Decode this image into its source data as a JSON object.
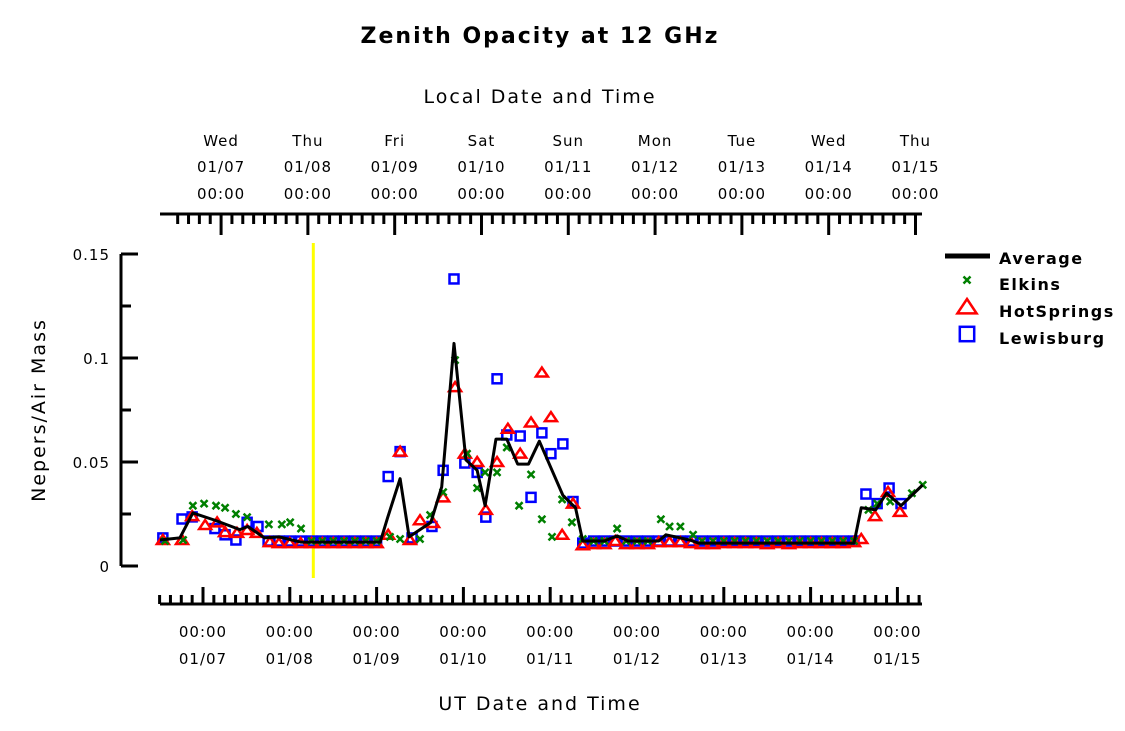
{
  "chart_data": {
    "type": "scatter",
    "title": "Zenith Opacity at 12 GHz",
    "xlabel_top": "Local Date and Time",
    "xlabel": "UT Date and Time",
    "ylabel": "Nepers/Air Mass",
    "x_units": "hours since 01/07 00:00 UT",
    "xlim": [
      -12,
      199
    ],
    "ylim": [
      0,
      0.15
    ],
    "yticks": [
      0,
      0.05,
      0.1,
      0.15
    ],
    "ytick_labels": [
      "0",
      "0.05",
      "0.1",
      "0.15"
    ],
    "local_offset_hours": -5,
    "top_ticks": [
      {
        "day": "Wed",
        "date": "01/07",
        "time": "00:00"
      },
      {
        "day": "Thu",
        "date": "01/08",
        "time": "00:00"
      },
      {
        "day": "Fri",
        "date": "01/09",
        "time": "00:00"
      },
      {
        "day": "Sat",
        "date": "01/10",
        "time": "00:00"
      },
      {
        "day": "Sun",
        "date": "01/11",
        "time": "00:00"
      },
      {
        "day": "Mon",
        "date": "01/12",
        "time": "00:00"
      },
      {
        "day": "Tue",
        "date": "01/13",
        "time": "00:00"
      },
      {
        "day": "Wed",
        "date": "01/14",
        "time": "00:00"
      },
      {
        "day": "Thu",
        "date": "01/15",
        "time": "00:00"
      }
    ],
    "bottom_ticks": [
      {
        "time": "00:00",
        "date": "01/07"
      },
      {
        "time": "00:00",
        "date": "01/08"
      },
      {
        "time": "00:00",
        "date": "01/09"
      },
      {
        "time": "00:00",
        "date": "01/10"
      },
      {
        "time": "00:00",
        "date": "01/11"
      },
      {
        "time": "00:00",
        "date": "01/12"
      },
      {
        "time": "00:00",
        "date": "01/13"
      },
      {
        "time": "00:00",
        "date": "01/14"
      },
      {
        "time": "00:00",
        "date": "01/15"
      }
    ],
    "current_time_marker": {
      "x": 30.5,
      "color": "#ffff00"
    },
    "legend_position": "top-right",
    "series": [
      {
        "name": "Average",
        "style": "line",
        "color": "#000000",
        "points": [
          [
            -11.9,
            0.0125
          ],
          [
            -6.4,
            0.0135
          ],
          [
            -2.8,
            0.0255
          ],
          [
            3.3,
            0.022
          ],
          [
            10.2,
            0.0175
          ],
          [
            12.4,
            0.019
          ],
          [
            17,
            0.0135
          ],
          [
            21,
            0.014
          ],
          [
            27,
            0.0115
          ],
          [
            49,
            0.0115
          ],
          [
            51,
            0.023
          ],
          [
            54.5,
            0.042
          ],
          [
            57,
            0.014
          ],
          [
            63,
            0.021
          ],
          [
            66,
            0.038
          ],
          [
            69.4,
            0.107
          ],
          [
            72.7,
            0.051
          ],
          [
            75.8,
            0.046
          ],
          [
            78,
            0.029
          ],
          [
            81,
            0.061
          ],
          [
            84,
            0.061
          ],
          [
            87,
            0.049
          ],
          [
            90,
            0.049
          ],
          [
            93,
            0.06
          ],
          [
            96.5,
            0.046
          ],
          [
            99.5,
            0.034
          ],
          [
            103,
            0.028
          ],
          [
            105,
            0.012
          ],
          [
            111,
            0.012
          ],
          [
            114.5,
            0.0145
          ],
          [
            117.5,
            0.012
          ],
          [
            126,
            0.012
          ],
          [
            128,
            0.015
          ],
          [
            134.6,
            0.0125
          ],
          [
            137,
            0.011
          ],
          [
            180,
            0.011
          ],
          [
            182,
            0.028
          ],
          [
            186,
            0.027
          ],
          [
            189,
            0.035
          ],
          [
            193,
            0.029
          ],
          [
            199,
            0.039
          ]
        ]
      },
      {
        "name": "Elkins",
        "style": "x",
        "color": "#008000",
        "points": [
          [
            -10.5,
            0.012
          ],
          [
            -5.5,
            0.0125
          ],
          [
            -2.8,
            0.029
          ],
          [
            0.3,
            0.03
          ],
          [
            3.6,
            0.029
          ],
          [
            6.1,
            0.028
          ],
          [
            9.1,
            0.025
          ],
          [
            12.2,
            0.0235
          ],
          [
            18.2,
            0.02
          ],
          [
            21.8,
            0.02
          ],
          [
            24.1,
            0.021
          ],
          [
            27.1,
            0.018
          ],
          [
            30,
            0.012
          ],
          [
            33,
            0.012
          ],
          [
            36,
            0.012
          ],
          [
            39,
            0.012
          ],
          [
            42,
            0.012
          ],
          [
            45,
            0.012
          ],
          [
            48,
            0.012
          ],
          [
            51.7,
            0.014
          ],
          [
            54.5,
            0.013
          ],
          [
            60,
            0.013
          ],
          [
            62.8,
            0.0245
          ],
          [
            66.4,
            0.0355
          ],
          [
            69.7,
            0.099
          ],
          [
            73,
            0.054
          ],
          [
            75.8,
            0.0375
          ],
          [
            78,
            0.045
          ],
          [
            81.3,
            0.045
          ],
          [
            84,
            0.057
          ],
          [
            87.4,
            0.029
          ],
          [
            90.7,
            0.044
          ],
          [
            93.7,
            0.0225
          ],
          [
            96.5,
            0.014
          ],
          [
            99.3,
            0.032
          ],
          [
            102,
            0.021
          ],
          [
            105,
            0.013
          ],
          [
            108,
            0.012
          ],
          [
            111,
            0.012
          ],
          [
            114.5,
            0.018
          ],
          [
            117,
            0.012
          ],
          [
            120,
            0.012
          ],
          [
            123,
            0.012
          ],
          [
            126.6,
            0.0225
          ],
          [
            129,
            0.019
          ],
          [
            132,
            0.019
          ],
          [
            135.5,
            0.015
          ],
          [
            138,
            0.012
          ],
          [
            141,
            0.012
          ],
          [
            144,
            0.012
          ],
          [
            147,
            0.012
          ],
          [
            150,
            0.012
          ],
          [
            153,
            0.012
          ],
          [
            156,
            0.012
          ],
          [
            159,
            0.012
          ],
          [
            162,
            0.012
          ],
          [
            165,
            0.012
          ],
          [
            168,
            0.012
          ],
          [
            171,
            0.012
          ],
          [
            174,
            0.012
          ],
          [
            177,
            0.012
          ],
          [
            180,
            0.012
          ],
          [
            184,
            0.027
          ],
          [
            186.4,
            0.03
          ],
          [
            190,
            0.031
          ],
          [
            196,
            0.035
          ],
          [
            199,
            0.039
          ]
        ]
      },
      {
        "name": "HotSprings",
        "style": "triangle",
        "color": "#ff0000",
        "points": [
          [
            -11.1,
            0.0125
          ],
          [
            -5.8,
            0.0125
          ],
          [
            -3,
            0.024
          ],
          [
            0.6,
            0.0197
          ],
          [
            3.9,
            0.021
          ],
          [
            6.1,
            0.0163
          ],
          [
            9.4,
            0.0159
          ],
          [
            12.2,
            0.0173
          ],
          [
            14.9,
            0.0159
          ],
          [
            18.5,
            0.0115
          ],
          [
            21,
            0.011
          ],
          [
            24,
            0.011
          ],
          [
            27,
            0.011
          ],
          [
            30,
            0.011
          ],
          [
            33,
            0.011
          ],
          [
            36,
            0.011
          ],
          [
            39,
            0.011
          ],
          [
            42,
            0.011
          ],
          [
            45,
            0.011
          ],
          [
            48,
            0.011
          ],
          [
            51.2,
            0.015
          ],
          [
            54.5,
            0.055
          ],
          [
            57.2,
            0.0125
          ],
          [
            60,
            0.022
          ],
          [
            63.6,
            0.0207
          ],
          [
            66.4,
            0.033
          ],
          [
            69.7,
            0.086
          ],
          [
            72.4,
            0.054
          ],
          [
            75.8,
            0.05
          ],
          [
            78.2,
            0.027
          ],
          [
            81.3,
            0.05
          ],
          [
            84.3,
            0.066
          ],
          [
            87.7,
            0.054
          ],
          [
            90.7,
            0.069
          ],
          [
            93.7,
            0.093
          ],
          [
            96.2,
            0.0716
          ],
          [
            99.3,
            0.015
          ],
          [
            102.3,
            0.03
          ],
          [
            105,
            0.01
          ],
          [
            108,
            0.0105
          ],
          [
            111,
            0.0105
          ],
          [
            114,
            0.012
          ],
          [
            117,
            0.0105
          ],
          [
            120,
            0.0105
          ],
          [
            123,
            0.0105
          ],
          [
            126,
            0.0115
          ],
          [
            129,
            0.0115
          ],
          [
            132,
            0.0115
          ],
          [
            135,
            0.011
          ],
          [
            138,
            0.0105
          ],
          [
            141,
            0.0105
          ],
          [
            144,
            0.011
          ],
          [
            147,
            0.011
          ],
          [
            150,
            0.011
          ],
          [
            153,
            0.011
          ],
          [
            156,
            0.0105
          ],
          [
            159,
            0.011
          ],
          [
            162,
            0.0105
          ],
          [
            165,
            0.011
          ],
          [
            168,
            0.011
          ],
          [
            171,
            0.011
          ],
          [
            174,
            0.011
          ],
          [
            177,
            0.011
          ],
          [
            180,
            0.0115
          ],
          [
            182,
            0.013
          ],
          [
            185.8,
            0.024
          ],
          [
            189.4,
            0.0356
          ],
          [
            192.7,
            0.026
          ]
        ]
      },
      {
        "name": "Lewisburg",
        "style": "square",
        "color": "#0000ff",
        "points": [
          [
            -11.1,
            0.0135
          ],
          [
            -5.8,
            0.0226
          ],
          [
            -3,
            0.0236
          ],
          [
            3.3,
            0.018
          ],
          [
            6.1,
            0.015
          ],
          [
            9.1,
            0.0125
          ],
          [
            12.2,
            0.021
          ],
          [
            15.2,
            0.019
          ],
          [
            18,
            0.012
          ],
          [
            21,
            0.012
          ],
          [
            24,
            0.012
          ],
          [
            27,
            0.012
          ],
          [
            30,
            0.012
          ],
          [
            33,
            0.012
          ],
          [
            36,
            0.012
          ],
          [
            39,
            0.012
          ],
          [
            42,
            0.012
          ],
          [
            45,
            0.012
          ],
          [
            48,
            0.012
          ],
          [
            51.2,
            0.043
          ],
          [
            54.5,
            0.055
          ],
          [
            57.8,
            0.0135
          ],
          [
            63.3,
            0.019
          ],
          [
            66.4,
            0.046
          ],
          [
            69.4,
            0.138
          ],
          [
            72.4,
            0.0495
          ],
          [
            75.8,
            0.045
          ],
          [
            78.2,
            0.0235
          ],
          [
            81.3,
            0.09
          ],
          [
            84,
            0.063
          ],
          [
            87.7,
            0.0625
          ],
          [
            90.7,
            0.033
          ],
          [
            93.7,
            0.064
          ],
          [
            96.2,
            0.054
          ],
          [
            99.5,
            0.0587
          ],
          [
            102.3,
            0.031
          ],
          [
            105,
            0.011
          ],
          [
            108,
            0.012
          ],
          [
            111,
            0.012
          ],
          [
            114,
            0.012
          ],
          [
            117,
            0.012
          ],
          [
            120,
            0.012
          ],
          [
            123,
            0.012
          ],
          [
            126,
            0.012
          ],
          [
            129,
            0.012
          ],
          [
            132,
            0.012
          ],
          [
            135,
            0.012
          ],
          [
            138,
            0.012
          ],
          [
            141,
            0.012
          ],
          [
            144,
            0.012
          ],
          [
            147,
            0.012
          ],
          [
            150,
            0.012
          ],
          [
            153,
            0.012
          ],
          [
            156,
            0.012
          ],
          [
            159,
            0.012
          ],
          [
            162,
            0.012
          ],
          [
            165,
            0.012
          ],
          [
            168,
            0.012
          ],
          [
            171,
            0.012
          ],
          [
            174,
            0.012
          ],
          [
            177,
            0.012
          ],
          [
            180,
            0.012
          ],
          [
            183.3,
            0.0346
          ],
          [
            186.4,
            0.03
          ],
          [
            189.7,
            0.0375
          ],
          [
            193,
            0.03
          ]
        ]
      }
    ]
  }
}
